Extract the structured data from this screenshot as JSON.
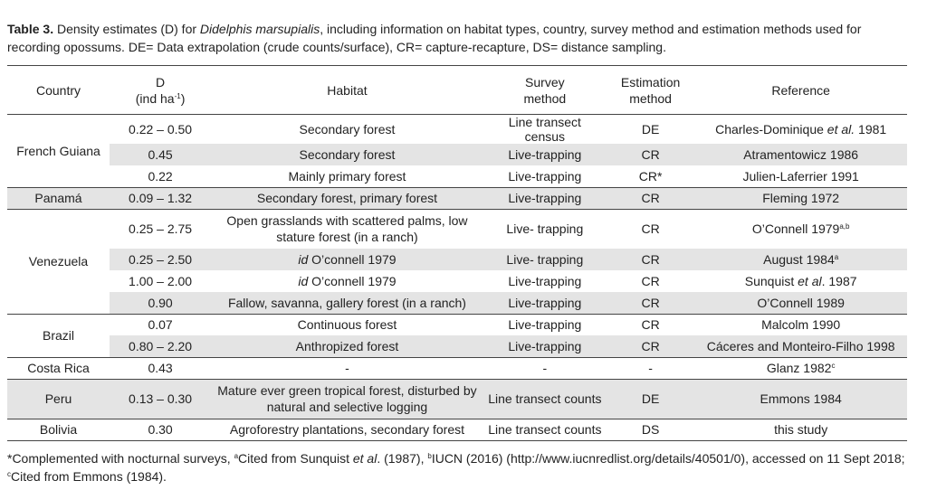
{
  "caption": {
    "label": "Table 3.",
    "text_a": " Density estimates (D) for ",
    "species": "Didelphis marsupialis",
    "text_b": ", including information on habitat types, country, survey method and estimation methods used for recording opossums. DE= Data extrapolation (crude counts/surface), CR= capture-recapture, DS= distance sampling."
  },
  "headers": {
    "country": "Country",
    "d_line1": "D",
    "d_line2": "(ind ha",
    "d_sup": "-1",
    "d_close": ")",
    "habitat": "Habitat",
    "survey_line1": "Survey",
    "survey_line2": "method",
    "estimation_line1": "Estimation",
    "estimation_line2": "method",
    "reference": "Reference"
  },
  "groups": {
    "french_guiana": {
      "country": "French Guiana",
      "rows": [
        {
          "d": "0.22 – 0.50",
          "habitat": "Secondary forest",
          "survey": "Line transect census",
          "est": "DE",
          "ref_pre": "Charles-Dominique ",
          "ref_it": "et al.",
          "ref_post": " 1981"
        },
        {
          "d": "0.45",
          "habitat": "Secondary forest",
          "survey": "Live-trapping",
          "est": "CR",
          "ref": "Atramentowicz 1986"
        },
        {
          "d": "0.22",
          "habitat": "Mainly primary forest",
          "survey": "Live-trapping",
          "est": "CR*",
          "ref": "Julien-Laferrier 1991"
        }
      ]
    },
    "panama": {
      "country": "Panamá",
      "rows": [
        {
          "d": "0.09 – 1.32",
          "habitat": "Secondary forest, primary forest",
          "survey": "Live-trapping",
          "est": "CR",
          "ref": "Fleming 1972"
        }
      ]
    },
    "venezuela": {
      "country": "Venezuela",
      "rows": [
        {
          "d": "0.25 – 2.75",
          "habitat_l1": "Open grasslands with scattered palms, low",
          "habitat_l2": "stature forest (in a ranch)",
          "survey": "Live- trapping",
          "est": "CR",
          "ref": "O’Connell 1979",
          "ref_sup": "a,b"
        },
        {
          "d": "0.25 – 2.50",
          "hab_it": "id",
          "hab_rest": " O’connell 1979",
          "survey": "Live- trapping",
          "est": "CR",
          "ref": "August 1984",
          "ref_sup": "a"
        },
        {
          "d": "1.00 – 2.00",
          "hab_it": "id",
          "hab_rest": " O’connell 1979",
          "survey": "Live-trapping",
          "est": "CR",
          "ref_pre": "Sunquist ",
          "ref_it": "et al",
          "ref_post": ". 1987"
        },
        {
          "d": "0.90",
          "habitat": "Fallow, savanna, gallery forest (in a ranch)",
          "survey": "Live-trapping",
          "est": "CR",
          "ref": "O’Connell 1989"
        }
      ]
    },
    "brazil": {
      "country": "Brazil",
      "rows": [
        {
          "d": "0.07",
          "habitat": "Continuous forest",
          "survey": "Live-trapping",
          "est": "CR",
          "ref": "Malcolm 1990"
        },
        {
          "d": "0.80 – 2.20",
          "habitat": "Anthropized forest",
          "survey": "Live-trapping",
          "est": "CR",
          "ref": "Cáceres and Monteiro-Filho 1998"
        }
      ]
    },
    "costa_rica": {
      "country": "Costa Rica",
      "rows": [
        {
          "d": "0.43",
          "habitat": "-",
          "survey": "-",
          "est": "-",
          "ref": "Glanz 1982",
          "ref_sup": "c"
        }
      ]
    },
    "peru": {
      "country": "Peru",
      "rows": [
        {
          "d": "0.13 – 0.30",
          "habitat_l1": "Mature ever green tropical forest, disturbed by",
          "habitat_l2": "natural and selective logging",
          "survey": "Line transect counts",
          "est": "DE",
          "ref": "Emmons 1984"
        }
      ]
    },
    "bolivia": {
      "country": "Bolivia",
      "rows": [
        {
          "d": "0.30",
          "habitat": "Agroforestry plantations, secondary forest",
          "survey": "Line transect counts",
          "est": "DS",
          "ref": "this study"
        }
      ]
    }
  },
  "footnote": {
    "p1": "*Complemented with nocturnal surveys, ",
    "sup_a": "a",
    "p2": "Cited from Sunquist ",
    "p2_it": "et al",
    "p3": ". (1987), ",
    "sup_b": "b",
    "p4": "IUCN (2016) (http://www.iucnredlist.org/details/40501/0), accessed on 11 Sept 2018; ",
    "sup_c": "c",
    "p5": "Cited from Emmons (1984)."
  }
}
